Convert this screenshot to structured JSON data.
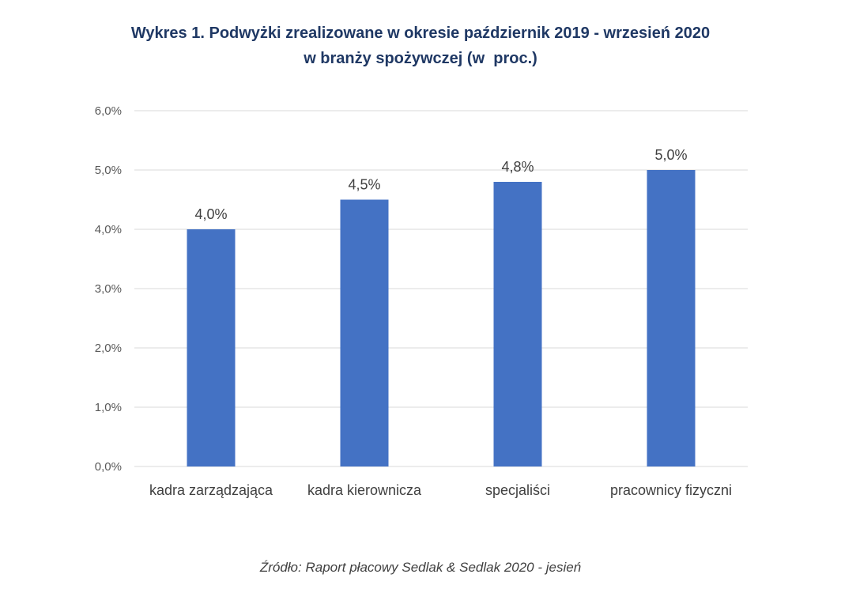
{
  "title_line1": "Wykres 1. Podwyżki zrealizowane w okresie październik 2019 - wrzesień 2020",
  "title_line2": "w branży spożywczej (w  proc.)",
  "source": "Źródło: Raport płacowy Sedlak & Sedlak 2020 - jesień",
  "colors": {
    "bar": "#4472C4",
    "title": "#1F3864",
    "grid": "#D9D9D9"
  },
  "chart_data": {
    "type": "bar",
    "categories": [
      "kadra zarządzająca",
      "kadra kierownicza",
      "specjaliści",
      "pracownicy fizyczni"
    ],
    "values": [
      4.0,
      4.5,
      4.8,
      5.0
    ],
    "data_labels": [
      "4,0%",
      "4,5%",
      "4,8%",
      "5,0%"
    ],
    "ylim": [
      0,
      6
    ],
    "yticks": [
      0,
      1,
      2,
      3,
      4,
      5,
      6
    ],
    "ytick_labels": [
      "0,0%",
      "1,0%",
      "2,0%",
      "3,0%",
      "4,0%",
      "5,0%",
      "6,0%"
    ],
    "grid": true,
    "legend": "none"
  }
}
